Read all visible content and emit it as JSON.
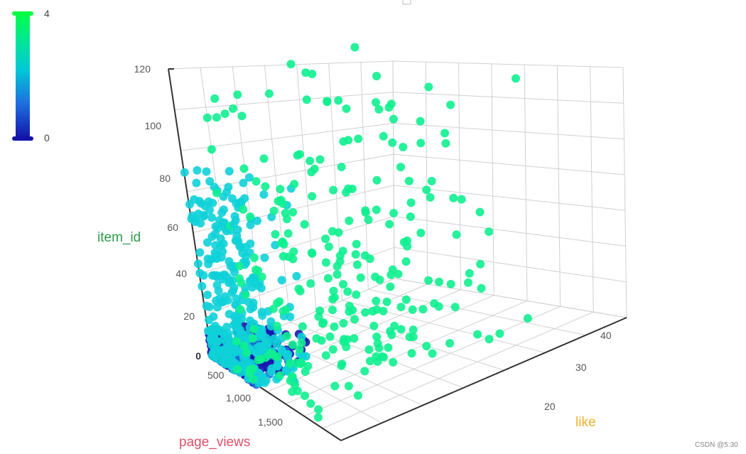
{
  "chart_data": {
    "type": "scatter3d",
    "title": "",
    "axes": {
      "y": {
        "name": "item_id",
        "name_color": "#2e9a4a",
        "ticks": [
          "0",
          "20",
          "40",
          "60",
          "80",
          "100",
          "120"
        ],
        "range": [
          0,
          120
        ]
      },
      "x": {
        "name": "page_views",
        "name_color": "#e0506a",
        "ticks": [
          "500",
          "1,000",
          "1,500"
        ],
        "range": [
          0,
          2000
        ]
      },
      "z": {
        "name": "like",
        "name_color": "#f0b030",
        "ticks": [
          "20",
          "30",
          "40"
        ],
        "range": [
          10,
          40
        ]
      }
    },
    "grid": true,
    "visual_map": {
      "min": 0,
      "max": 4,
      "min_label": "0",
      "max_label": "4",
      "colors": [
        "#1414a8",
        "#1f6fe0",
        "#00c8d8",
        "#00e890",
        "#00ff44"
      ]
    },
    "clusters": [
      {
        "label_value": 0,
        "color": "#1818b0",
        "approx_count": 300,
        "page_views_range": [
          0,
          700
        ],
        "item_id_range": [
          0,
          10
        ]
      },
      {
        "label_value": 1,
        "color": "#1e70e0",
        "approx_count": 20,
        "page_views_range": [
          300,
          700
        ],
        "item_id_range": [
          0,
          10
        ]
      },
      {
        "label_value": 3,
        "color": "#10d2d8",
        "approx_count": 350,
        "page_views_range": [
          0,
          900
        ],
        "item_id_range": [
          0,
          80
        ]
      },
      {
        "label_value": 4,
        "color": "#10f090",
        "approx_count": 260,
        "page_views_range": [
          400,
          1600
        ],
        "item_id_range": [
          0,
          120
        ]
      }
    ]
  },
  "watermark": "CSDN @5:30"
}
